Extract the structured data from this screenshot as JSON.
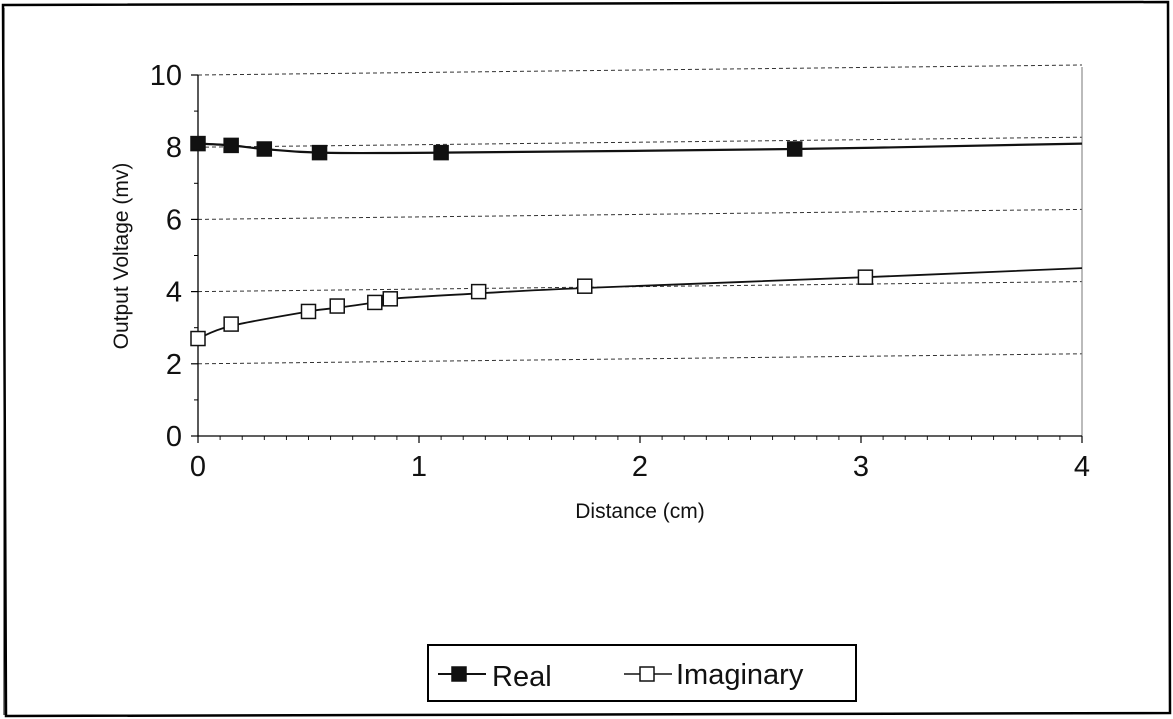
{
  "chart_data": {
    "type": "line",
    "title": "",
    "xlabel": "Distance  (cm)",
    "ylabel": "Output Voltage  (mv)",
    "xlim": [
      0,
      4
    ],
    "ylim": [
      0,
      10
    ],
    "x_ticks": [
      "0",
      "1",
      "2",
      "3",
      "4"
    ],
    "y_ticks": [
      "0",
      "2",
      "4",
      "6",
      "8",
      "10"
    ],
    "grid": "horizontal dashed",
    "legend_position": "bottom",
    "series": [
      {
        "name": "Real",
        "marker": "filled-square",
        "x": [
          0,
          0.15,
          0.3,
          0.55,
          1.1,
          2.7
        ],
        "y": [
          8.1,
          8.05,
          7.95,
          7.85,
          7.85,
          7.95
        ],
        "curve_x": [
          0,
          0.15,
          0.3,
          0.55,
          1.1,
          2.7,
          4
        ],
        "curve_y": [
          8.1,
          8.05,
          7.95,
          7.85,
          7.85,
          7.95,
          8.1
        ]
      },
      {
        "name": "Imaginary",
        "marker": "open-square",
        "x": [
          0,
          0.15,
          0.5,
          0.63,
          0.8,
          0.87,
          1.27,
          1.75,
          3.02
        ],
        "y": [
          2.7,
          3.1,
          3.45,
          3.6,
          3.7,
          3.8,
          4.0,
          4.15,
          4.4
        ],
        "curve_x": [
          0,
          0.15,
          0.5,
          0.63,
          0.8,
          0.87,
          1.27,
          1.75,
          3.02,
          4
        ],
        "curve_y": [
          2.7,
          3.05,
          3.45,
          3.55,
          3.7,
          3.8,
          3.95,
          4.1,
          4.4,
          4.65
        ]
      }
    ]
  },
  "colors": {
    "line": "#111111",
    "grid": "#333333",
    "frame": "#000000"
  }
}
